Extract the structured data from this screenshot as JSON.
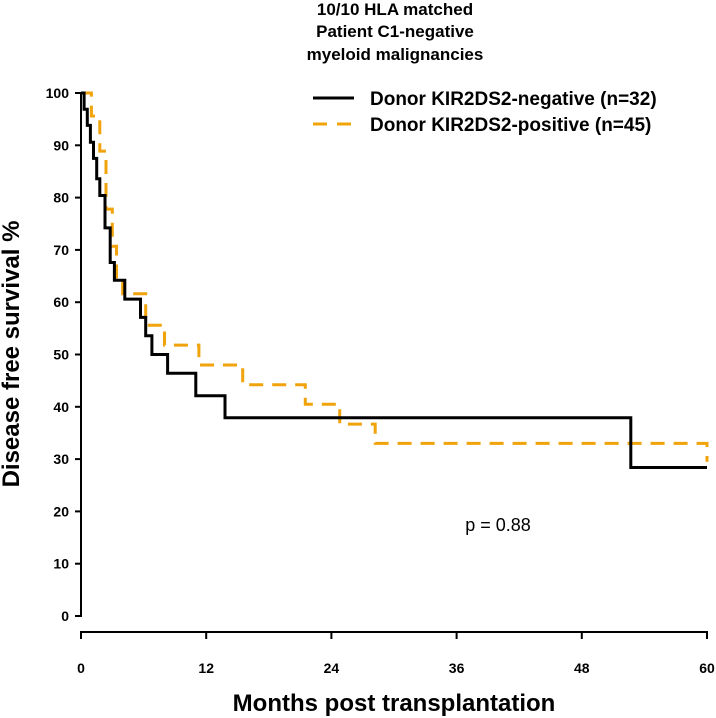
{
  "chart_data": {
    "type": "line",
    "subtype": "kaplan-meier-step",
    "title": [
      "10/10 HLA matched",
      "Patient C1-negative",
      "myeloid malignancies"
    ],
    "xlabel": "Months post transplantation",
    "ylabel": "Disease free survival %",
    "xlim": [
      0,
      60
    ],
    "ylim": [
      0,
      100
    ],
    "xticks": [
      0,
      12,
      24,
      36,
      48,
      60
    ],
    "yticks": [
      0,
      10,
      20,
      30,
      40,
      50,
      60,
      70,
      80,
      90,
      100
    ],
    "grid": false,
    "legend_position": "top-right",
    "series": [
      {
        "name": "Donor KIR2DS2-negative (n=32)",
        "color": "#000000",
        "dash": "solid",
        "x": [
          0,
          0.3,
          0.6,
          0.9,
          1.2,
          1.5,
          1.8,
          2.3,
          2.8,
          3.2,
          4.2,
          5.7,
          6.2,
          6.8,
          8.3,
          11.0,
          13.8,
          52.7,
          60
        ],
        "y": [
          100,
          96.9,
          93.8,
          90.6,
          87.5,
          83.6,
          80.4,
          74.2,
          67.6,
          64.2,
          60.6,
          57.1,
          53.6,
          50.0,
          46.4,
          42.1,
          37.9,
          28.4,
          28.4
        ]
      },
      {
        "name": "Donor KIR2DS2-positive (n=45)",
        "color": "#f0a30a",
        "dash": "dashed",
        "x": [
          0,
          1.0,
          1.8,
          2.4,
          3.0,
          3.4,
          4.0,
          6.2,
          8.0,
          11.3,
          15.5,
          21.5,
          24.8,
          28.2,
          60
        ],
        "y": [
          100,
          95.6,
          88.9,
          77.8,
          70.7,
          64.4,
          61.6,
          55.6,
          51.8,
          48.0,
          44.2,
          40.5,
          36.7,
          33.0,
          29.5
        ]
      }
    ],
    "annotations": [
      "p = 0.88"
    ]
  }
}
